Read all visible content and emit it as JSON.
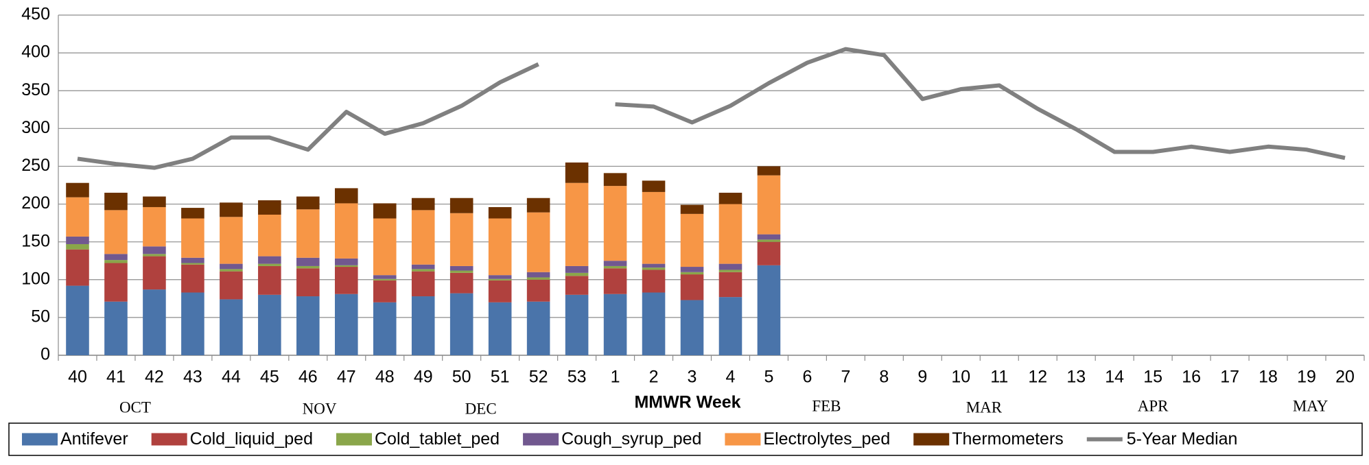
{
  "chart_data": {
    "type": "bar",
    "stacked": true,
    "x_label": "MMWR Week",
    "annotations": [
      "OCT",
      "NOV",
      "DEC",
      "FEB",
      "MAR",
      "APR",
      "MAY"
    ],
    "categories": [
      "40",
      "41",
      "42",
      "43",
      "44",
      "45",
      "46",
      "47",
      "48",
      "49",
      "50",
      "51",
      "52",
      "53",
      "1",
      "2",
      "3",
      "4",
      "5",
      "6",
      "7",
      "8",
      "9",
      "10",
      "11",
      "12",
      "13",
      "14",
      "15",
      "16",
      "17",
      "18",
      "19",
      "20"
    ],
    "ylim": [
      0,
      450
    ],
    "yticks": [
      0,
      50,
      100,
      150,
      200,
      250,
      300,
      350,
      400,
      450
    ],
    "grid": true,
    "legend": "bottom",
    "series": [
      {
        "name": "Antifever",
        "color": "#4a74aa",
        "values": [
          92,
          71,
          87,
          83,
          74,
          80,
          78,
          81,
          70,
          78,
          82,
          70,
          71,
          80,
          81,
          83,
          73,
          77,
          119,
          null,
          null,
          null,
          null,
          null,
          null,
          null,
          null,
          null,
          null,
          null,
          null,
          null,
          null,
          null
        ]
      },
      {
        "name": "Cold_liquid_ped",
        "color": "#b0413e",
        "values": [
          48,
          51,
          44,
          37,
          37,
          38,
          37,
          36,
          29,
          33,
          27,
          29,
          29,
          25,
          34,
          30,
          34,
          33,
          31,
          null,
          null,
          null,
          null,
          null,
          null,
          null,
          null,
          null,
          null,
          null,
          null,
          null,
          null,
          null
        ]
      },
      {
        "name": "Cold_tablet_ped",
        "color": "#8aa64a",
        "values": [
          7,
          4,
          3,
          2,
          3,
          3,
          3,
          2,
          2,
          3,
          3,
          2,
          3,
          4,
          3,
          3,
          3,
          3,
          3,
          null,
          null,
          null,
          null,
          null,
          null,
          null,
          null,
          null,
          null,
          null,
          null,
          null,
          null,
          null
        ]
      },
      {
        "name": "Cough_syrup_ped",
        "color": "#71588f",
        "values": [
          10,
          8,
          10,
          7,
          7,
          10,
          11,
          9,
          5,
          6,
          6,
          5,
          7,
          9,
          7,
          5,
          7,
          8,
          7,
          null,
          null,
          null,
          null,
          null,
          null,
          null,
          null,
          null,
          null,
          null,
          null,
          null,
          null,
          null
        ]
      },
      {
        "name": "Electrolytes_ped",
        "color": "#f79646",
        "values": [
          52,
          58,
          52,
          52,
          62,
          55,
          64,
          73,
          75,
          72,
          70,
          75,
          79,
          110,
          99,
          95,
          70,
          79,
          78,
          null,
          null,
          null,
          null,
          null,
          null,
          null,
          null,
          null,
          null,
          null,
          null,
          null,
          null,
          null
        ]
      },
      {
        "name": "Thermometers",
        "color": "#6b3100",
        "values": [
          19,
          23,
          14,
          14,
          19,
          19,
          17,
          20,
          20,
          16,
          20,
          15,
          19,
          27,
          17,
          15,
          12,
          15,
          12,
          null,
          null,
          null,
          null,
          null,
          null,
          null,
          null,
          null,
          null,
          null,
          null,
          null,
          null,
          null
        ]
      },
      {
        "name": "5-Year Median",
        "color": "#808080",
        "type": "line",
        "values": [
          260,
          253,
          248,
          260,
          288,
          288,
          272,
          322,
          293,
          307,
          330,
          361,
          385,
          null,
          332,
          329,
          308,
          330,
          360,
          387,
          405,
          397,
          339,
          352,
          357,
          326,
          299,
          269,
          269,
          276,
          269,
          276,
          272,
          261
        ]
      }
    ]
  }
}
